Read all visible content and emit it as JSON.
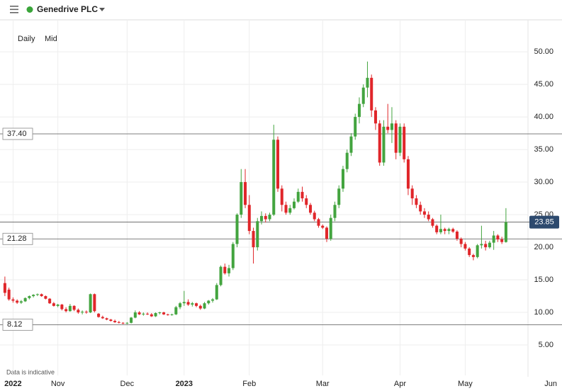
{
  "header": {
    "title": "Genedrive PLC"
  },
  "chart_data": {
    "type": "candlestick",
    "interval": "Daily",
    "price_type": "Mid",
    "note": "Data is indicative",
    "up_color": "#43a43f",
    "down_color": "#e0262a",
    "grid": true,
    "ohlc": [
      [
        14.5,
        15.5,
        12.5,
        13.0
      ],
      [
        13.5,
        13.8,
        11.8,
        12.0
      ],
      [
        12.0,
        12.3,
        11.5,
        11.8
      ],
      [
        11.8,
        12.0,
        11.3,
        11.5
      ],
      [
        11.5,
        11.9,
        11.3,
        11.7
      ],
      [
        11.7,
        12.3,
        11.6,
        12.2
      ],
      [
        12.2,
        12.6,
        12.0,
        12.5
      ],
      [
        12.5,
        12.8,
        12.3,
        12.7
      ],
      [
        12.7,
        12.9,
        12.5,
        12.8
      ],
      [
        12.8,
        12.9,
        12.4,
        12.5
      ],
      [
        12.5,
        12.6,
        12.0,
        12.1
      ],
      [
        12.1,
        12.2,
        11.3,
        11.4
      ],
      [
        11.4,
        11.6,
        10.9,
        11.0
      ],
      [
        11.0,
        11.3,
        10.8,
        11.2
      ],
      [
        11.2,
        11.3,
        10.3,
        10.5
      ],
      [
        10.5,
        10.8,
        10.0,
        10.2
      ],
      [
        10.2,
        11.3,
        10.1,
        11.0
      ],
      [
        11.0,
        11.1,
        10.2,
        10.4
      ],
      [
        10.4,
        10.6,
        9.8,
        10.0
      ],
      [
        10.0,
        10.3,
        9.7,
        10.1
      ],
      [
        10.1,
        10.3,
        9.8,
        10.0
      ],
      [
        10.0,
        12.9,
        9.9,
        12.8
      ],
      [
        12.8,
        12.9,
        10.0,
        10.2
      ],
      [
        9.8,
        9.9,
        9.2,
        9.3
      ],
      [
        9.3,
        9.5,
        9.0,
        9.1
      ],
      [
        9.1,
        9.2,
        8.8,
        8.9
      ],
      [
        8.9,
        9.0,
        8.6,
        8.7
      ],
      [
        8.7,
        8.9,
        8.4,
        8.5
      ],
      [
        8.5,
        8.7,
        8.3,
        8.4
      ],
      [
        8.4,
        8.5,
        8.2,
        8.3
      ],
      [
        8.3,
        8.5,
        8.2,
        8.4
      ],
      [
        8.4,
        9.3,
        8.3,
        9.2
      ],
      [
        9.2,
        10.3,
        9.1,
        10.0
      ],
      [
        10.0,
        10.2,
        9.6,
        9.7
      ],
      [
        9.7,
        10.0,
        9.5,
        9.8
      ],
      [
        9.8,
        10.0,
        9.6,
        9.7
      ],
      [
        9.7,
        9.9,
        9.3,
        9.4
      ],
      [
        9.4,
        10.0,
        9.3,
        9.9
      ],
      [
        9.9,
        10.1,
        9.7,
        10.0
      ],
      [
        10.0,
        10.1,
        9.6,
        9.7
      ],
      [
        9.7,
        9.8,
        9.5,
        9.6
      ],
      [
        9.6,
        9.8,
        9.5,
        9.7
      ],
      [
        9.7,
        11.0,
        9.6,
        10.8
      ],
      [
        10.8,
        11.6,
        10.5,
        11.4
      ],
      [
        11.4,
        13.3,
        11.0,
        11.6
      ],
      [
        11.6,
        12.0,
        11.0,
        11.2
      ],
      [
        11.2,
        11.6,
        10.9,
        11.4
      ],
      [
        11.4,
        11.5,
        10.8,
        11.0
      ],
      [
        11.0,
        11.2,
        10.4,
        10.6
      ],
      [
        10.6,
        11.6,
        10.5,
        11.4
      ],
      [
        11.4,
        11.9,
        11.2,
        11.8
      ],
      [
        11.8,
        12.2,
        11.5,
        12.0
      ],
      [
        12.0,
        14.5,
        11.9,
        14.2
      ],
      [
        14.2,
        17.2,
        14.0,
        17.0
      ],
      [
        17.0,
        17.5,
        15.8,
        16.0
      ],
      [
        16.0,
        17.3,
        15.5,
        16.8
      ],
      [
        16.8,
        20.8,
        16.5,
        20.5
      ],
      [
        20.5,
        25.2,
        20.0,
        25.0
      ],
      [
        25.0,
        32.0,
        24.5,
        30.0
      ],
      [
        30.0,
        32.0,
        26.0,
        26.5
      ],
      [
        26.5,
        28.0,
        22.0,
        22.5
      ],
      [
        22.5,
        23.0,
        17.5,
        20.0
      ],
      [
        20.0,
        24.5,
        19.5,
        24.0
      ],
      [
        24.0,
        25.5,
        23.5,
        24.8
      ],
      [
        24.8,
        25.2,
        23.8,
        24.3
      ],
      [
        24.3,
        25.3,
        24.0,
        25.0
      ],
      [
        25.0,
        38.8,
        24.8,
        36.5
      ],
      [
        36.5,
        37.0,
        28.5,
        29.0
      ],
      [
        29.0,
        29.5,
        25.5,
        26.5
      ],
      [
        26.5,
        27.0,
        25.0,
        25.3
      ],
      [
        25.3,
        26.5,
        25.0,
        26.0
      ],
      [
        26.0,
        27.5,
        25.8,
        27.0
      ],
      [
        27.0,
        29.0,
        26.8,
        28.5
      ],
      [
        28.5,
        29.3,
        27.0,
        27.5
      ],
      [
        27.5,
        28.0,
        26.0,
        26.5
      ],
      [
        26.5,
        26.8,
        25.0,
        25.3
      ],
      [
        25.3,
        25.6,
        24.0,
        24.3
      ],
      [
        24.3,
        24.5,
        23.0,
        23.3
      ],
      [
        23.3,
        23.5,
        22.8,
        23.0
      ],
      [
        23.0,
        23.2,
        20.8,
        21.3
      ],
      [
        21.3,
        25.0,
        21.0,
        24.5
      ],
      [
        24.5,
        27.0,
        24.0,
        26.5
      ],
      [
        26.5,
        29.5,
        26.0,
        29.0
      ],
      [
        29.0,
        32.5,
        28.5,
        32.0
      ],
      [
        32.0,
        35.0,
        31.5,
        34.5
      ],
      [
        34.5,
        37.5,
        34.0,
        37.0
      ],
      [
        37.0,
        40.5,
        36.5,
        40.0
      ],
      [
        40.0,
        43.0,
        39.0,
        42.0
      ],
      [
        42.0,
        45.0,
        41.5,
        44.5
      ],
      [
        44.5,
        48.5,
        43.0,
        46.0
      ],
      [
        46.0,
        46.5,
        40.0,
        41.0
      ],
      [
        41.0,
        41.5,
        38.0,
        39.0
      ],
      [
        39.0,
        39.5,
        32.5,
        33.0
      ],
      [
        33.0,
        39.5,
        32.5,
        38.5
      ],
      [
        38.5,
        42.0,
        37.5,
        38.0
      ],
      [
        38.0,
        41.5,
        36.0,
        39.0
      ],
      [
        39.0,
        39.5,
        33.5,
        34.5
      ],
      [
        34.5,
        39.0,
        34.0,
        38.5
      ],
      [
        38.5,
        39.0,
        33.0,
        33.5
      ],
      [
        33.5,
        34.0,
        28.0,
        29.0
      ],
      [
        29.0,
        29.5,
        26.5,
        27.5
      ],
      [
        27.5,
        28.0,
        26.0,
        26.5
      ],
      [
        26.5,
        27.0,
        25.0,
        25.5
      ],
      [
        25.5,
        26.0,
        24.5,
        25.0
      ],
      [
        25.0,
        25.5,
        24.0,
        24.3
      ],
      [
        24.3,
        24.5,
        23.0,
        23.3
      ],
      [
        23.3,
        23.5,
        22.0,
        22.3
      ],
      [
        22.3,
        25.0,
        22.0,
        22.8
      ],
      [
        22.8,
        23.0,
        22.0,
        22.5
      ],
      [
        22.5,
        23.0,
        22.0,
        22.8
      ],
      [
        22.8,
        23.0,
        22.2,
        22.4
      ],
      [
        22.4,
        22.6,
        21.0,
        21.3
      ],
      [
        21.3,
        21.5,
        20.0,
        20.5
      ],
      [
        20.5,
        20.8,
        19.5,
        19.8
      ],
      [
        19.8,
        20.0,
        18.5,
        18.8
      ],
      [
        18.8,
        19.0,
        18.0,
        18.5
      ],
      [
        18.5,
        20.5,
        18.3,
        20.3
      ],
      [
        20.3,
        23.3,
        19.8,
        20.5
      ],
      [
        20.5,
        21.0,
        19.5,
        20.0
      ],
      [
        20.0,
        21.0,
        19.8,
        20.7
      ],
      [
        20.7,
        22.5,
        19.6,
        21.8
      ],
      [
        21.8,
        22.0,
        20.8,
        21.2
      ],
      [
        21.2,
        21.6,
        20.5,
        20.8
      ],
      [
        20.8,
        26.0,
        20.7,
        23.85
      ]
    ],
    "xlim": [
      -1.2,
      134.5
    ],
    "xticks": [
      {
        "value": 2,
        "label": "2022"
      },
      {
        "value": 13,
        "label": "Nov"
      },
      {
        "value": 30,
        "label": "Dec"
      },
      {
        "value": 44,
        "label": "2023"
      },
      {
        "value": 60,
        "label": "Feb"
      },
      {
        "value": 78,
        "label": "Mar"
      },
      {
        "value": 97,
        "label": "Apr"
      },
      {
        "value": 113,
        "label": "May"
      },
      {
        "value": 134,
        "label": "Jun"
      }
    ],
    "ylim": [
      0.33,
      54.9
    ],
    "yticks": [
      {
        "value": 5,
        "label": "5.00"
      },
      {
        "value": 10,
        "label": "10.00"
      },
      {
        "value": 15,
        "label": "15.00"
      },
      {
        "value": 20,
        "label": "20.00"
      },
      {
        "value": 25,
        "label": "25.00"
      },
      {
        "value": 30,
        "label": "30.00"
      },
      {
        "value": 35,
        "label": "35.00"
      },
      {
        "value": 40,
        "label": "40.00"
      },
      {
        "value": 45,
        "label": "45.00"
      },
      {
        "value": 50,
        "label": "50.00"
      }
    ],
    "levels": [
      {
        "value": 37.4,
        "label": "37.40"
      },
      {
        "value": 21.28,
        "label": "21.28"
      },
      {
        "value": 8.12,
        "label": "8.12"
      }
    ],
    "last_price": {
      "value": 23.85,
      "label": "23.85"
    }
  }
}
